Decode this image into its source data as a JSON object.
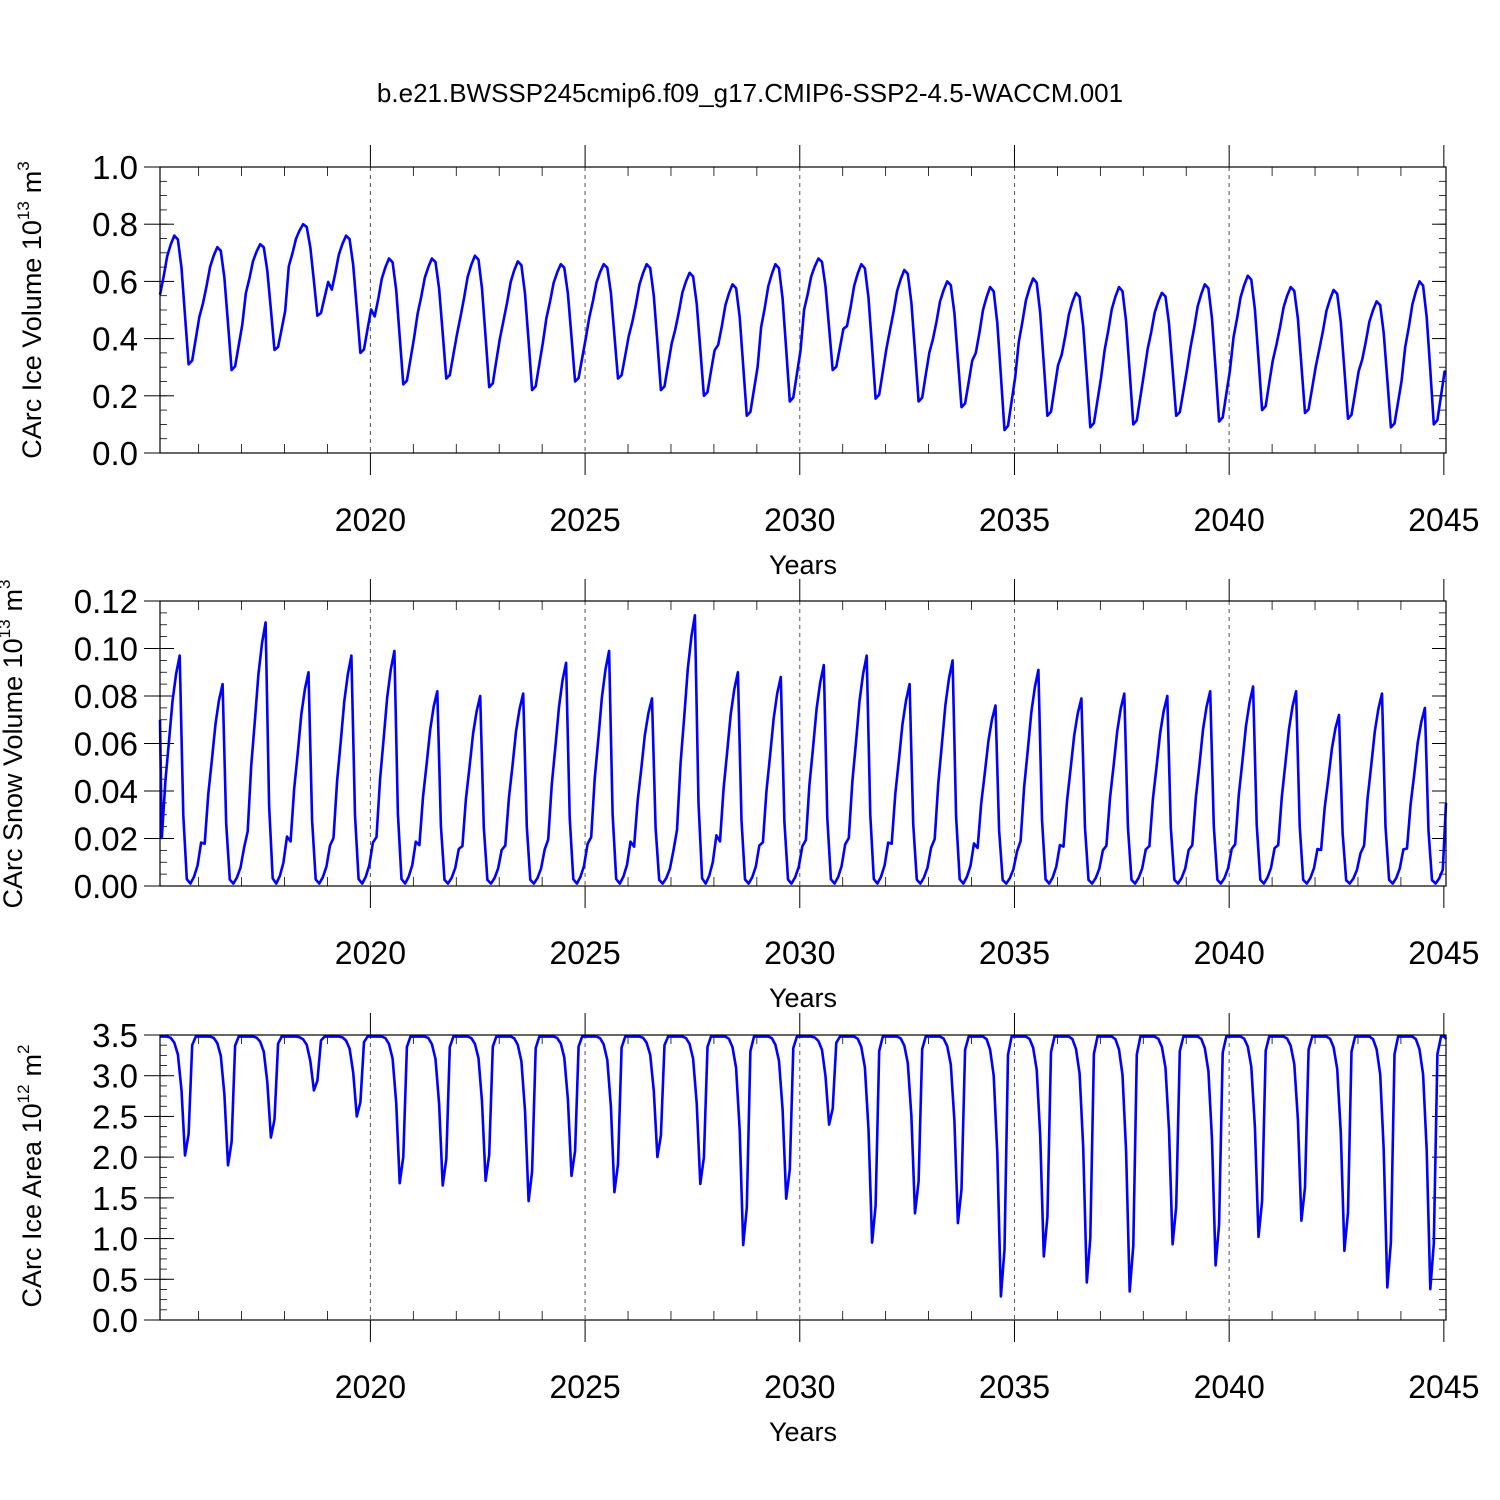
{
  "title": "b.e21.BWSSP245cmip6.f09_g17.CMIP6-SSP2-4.5-WACCM.001",
  "line_color": "#0000ff",
  "chart_data": [
    {
      "type": "line",
      "id": "ice-volume",
      "ylabel": "CArc Ice Volume 10",
      "ylabel_exp": "13",
      "ylabel_unit": "m",
      "ylabel_unit_exp": "3",
      "xlabel": "Years",
      "xlim": [
        2015.1,
        2045.05
      ],
      "ylim": [
        0.0,
        1.0
      ],
      "yticks": [
        0.0,
        0.2,
        0.4,
        0.6,
        0.8,
        1.0
      ],
      "ytick_labels": [
        "0.0",
        "0.2",
        "0.4",
        "0.6",
        "0.8",
        "1.0"
      ],
      "ytick_minor": 0.05,
      "xticks": [
        2020,
        2025,
        2030,
        2035,
        2040,
        2045
      ],
      "xtick_labels": [
        "2020",
        "2025",
        "2030",
        "2035",
        "2040",
        "2045"
      ],
      "xgrid": [
        2020,
        2025,
        2030,
        2035,
        2040
      ],
      "series": [
        {
          "name": "CArc Ice Volume",
          "amp": [
            [
              0.31,
              0.76
            ],
            [
              0.29,
              0.72
            ],
            [
              0.36,
              0.73
            ],
            [
              0.48,
              0.8
            ],
            [
              0.35,
              0.76
            ],
            [
              0.24,
              0.68
            ],
            [
              0.26,
              0.68
            ],
            [
              0.23,
              0.69
            ],
            [
              0.22,
              0.67
            ],
            [
              0.25,
              0.66
            ],
            [
              0.26,
              0.66
            ],
            [
              0.22,
              0.66
            ],
            [
              0.2,
              0.63
            ],
            [
              0.13,
              0.59
            ],
            [
              0.18,
              0.66
            ],
            [
              0.29,
              0.68
            ],
            [
              0.19,
              0.66
            ],
            [
              0.18,
              0.64
            ],
            [
              0.16,
              0.6
            ],
            [
              0.08,
              0.58
            ],
            [
              0.13,
              0.61
            ],
            [
              0.09,
              0.56
            ],
            [
              0.1,
              0.58
            ],
            [
              0.13,
              0.56
            ],
            [
              0.11,
              0.59
            ],
            [
              0.15,
              0.62
            ],
            [
              0.14,
              0.58
            ],
            [
              0.12,
              0.57
            ],
            [
              0.09,
              0.53
            ],
            [
              0.1,
              0.6
            ]
          ]
        }
      ]
    },
    {
      "type": "line",
      "id": "snow-volume",
      "ylabel": "CArc Snow Volume 10",
      "ylabel_exp": "13",
      "ylabel_unit": "m",
      "ylabel_unit_exp": "3",
      "xlabel": "Years",
      "xlim": [
        2015.1,
        2045.05
      ],
      "ylim": [
        0.0,
        0.12
      ],
      "yticks": [
        0.0,
        0.02,
        0.04,
        0.06,
        0.08,
        0.1,
        0.12
      ],
      "ytick_labels": [
        "0.00",
        "0.02",
        "0.04",
        "0.06",
        "0.08",
        "0.10",
        "0.12"
      ],
      "ytick_minor": 0.005,
      "xticks": [
        2020,
        2025,
        2030,
        2035,
        2040,
        2045
      ],
      "xtick_labels": [
        "2020",
        "2025",
        "2030",
        "2035",
        "2040",
        "2045"
      ],
      "xgrid": [
        2020,
        2025,
        2030,
        2035,
        2040
      ],
      "series": [
        {
          "name": "CArc Snow Volume",
          "peaks": [
            0.096,
            0.084,
            0.11,
            0.089,
            0.096,
            0.098,
            0.081,
            0.079,
            0.08,
            0.093,
            0.098,
            0.078,
            0.113,
            0.089,
            0.087,
            0.092,
            0.096,
            0.084,
            0.094,
            0.075,
            0.09,
            0.078,
            0.08,
            0.079,
            0.081,
            0.083,
            0.081,
            0.071,
            0.08,
            0.074
          ],
          "start": 0.07,
          "end": 0.035
        }
      ]
    },
    {
      "type": "line",
      "id": "ice-area",
      "ylabel": "CArc Ice Area 10",
      "ylabel_exp": "12",
      "ylabel_unit": "m",
      "ylabel_unit_exp": "2",
      "xlabel": "Years",
      "xlim": [
        2015.1,
        2045.05
      ],
      "ylim": [
        0.0,
        3.5
      ],
      "yticks": [
        0.0,
        0.5,
        1.0,
        1.5,
        2.0,
        2.5,
        3.0,
        3.5
      ],
      "ytick_labels": [
        "0.0",
        "0.5",
        "1.0",
        "1.5",
        "2.0",
        "2.5",
        "3.0",
        "3.5"
      ],
      "ytick_minor": 0.125,
      "xticks": [
        2020,
        2025,
        2030,
        2035,
        2040,
        2045
      ],
      "xtick_labels": [
        "2020",
        "2025",
        "2030",
        "2035",
        "2040",
        "2045"
      ],
      "xgrid": [
        2020,
        2025,
        2030,
        2035,
        2040
      ],
      "series": [
        {
          "name": "CArc Ice Area",
          "max": 3.48,
          "minima": [
            2.02,
            1.9,
            2.24,
            2.82,
            2.5,
            1.68,
            1.65,
            1.71,
            1.46,
            1.77,
            1.57,
            2.0,
            1.67,
            0.92,
            1.49,
            2.4,
            0.95,
            1.31,
            1.19,
            0.29,
            0.78,
            0.46,
            0.35,
            0.93,
            0.67,
            1.02,
            1.22,
            0.85,
            0.4,
            0.38
          ]
        }
      ]
    }
  ]
}
